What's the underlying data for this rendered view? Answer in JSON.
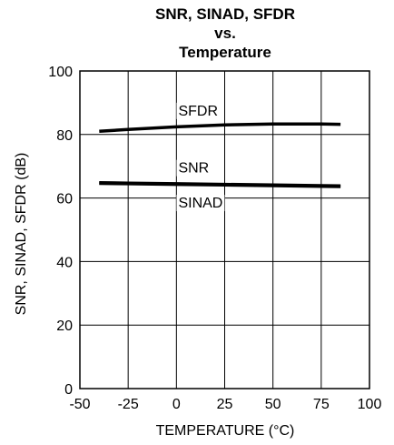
{
  "chart_data": {
    "type": "line",
    "title": [
      "SNR, SINAD, SFDR",
      "vs.",
      "Temperature"
    ],
    "xlabel": "TEMPERATURE  (°C)",
    "ylabel": "SNR, SINAD, SFDR (dB)",
    "xlim": [
      -50,
      100
    ],
    "ylim": [
      0,
      100
    ],
    "xticks": [
      -50,
      -25,
      0,
      25,
      50,
      75,
      100
    ],
    "yticks": [
      0,
      20,
      40,
      60,
      80,
      100
    ],
    "grid": true,
    "series": [
      {
        "name": "SFDR",
        "x": [
          -40,
          -25,
          0,
          25,
          50,
          75,
          85
        ],
        "y": [
          81.0,
          81.6,
          82.4,
          83.0,
          83.3,
          83.3,
          83.2
        ]
      },
      {
        "name": "SNR",
        "x": [
          -40,
          -25,
          0,
          25,
          50,
          75,
          85
        ],
        "y": [
          64.8,
          64.7,
          64.5,
          64.3,
          64.1,
          63.9,
          63.8
        ]
      },
      {
        "name": "SINAD",
        "x": [
          -40,
          -25,
          0,
          25,
          50,
          75,
          85
        ],
        "y": [
          64.6,
          64.5,
          64.3,
          64.1,
          63.9,
          63.7,
          63.6
        ]
      }
    ],
    "annotations": [
      {
        "text": "SFDR",
        "x": 1,
        "y": 86
      },
      {
        "text": "SNR",
        "x": 1,
        "y": 68
      },
      {
        "text": "SINAD",
        "x": 1,
        "y": 57
      }
    ]
  }
}
